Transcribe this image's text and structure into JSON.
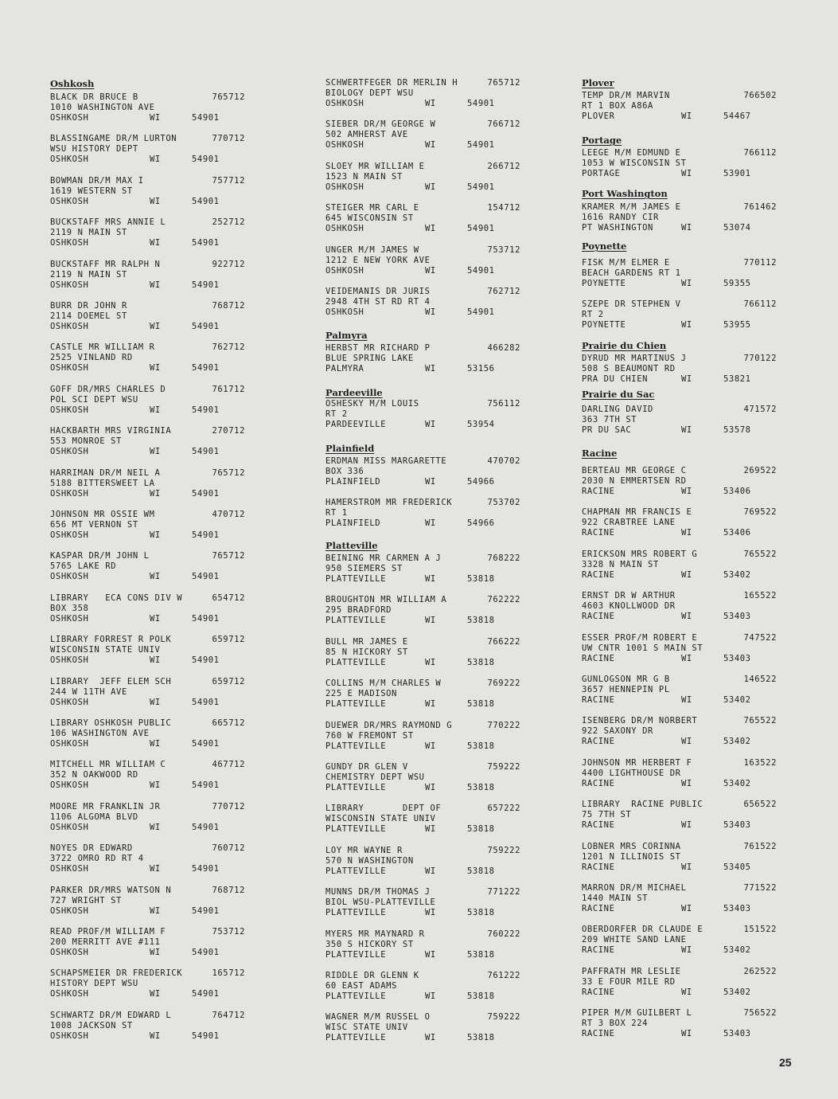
{
  "page_number": "25",
  "columns": [
    {
      "sections": [
        {
          "heading": "Oshkosh",
          "entries": [
            {
              "name": "BLACK DR BRUCE B",
              "code": "765712",
              "address": "1010 WASHINGTON AVE",
              "city": "OSHKOSH",
              "state": "WI",
              "zip": "54901"
            },
            {
              "name": "BLASSINGAME DR/M LURTON",
              "code": "770712",
              "address": "WSU HISTORY DEPT",
              "city": "OSHKOSH",
              "state": "WI",
              "zip": "54901"
            },
            {
              "name": "BOWMAN DR/M MAX I",
              "code": "757712",
              "address": "1619 WESTERN ST",
              "city": "OSHKOSH",
              "state": "WI",
              "zip": "54901"
            },
            {
              "name": "BUCKSTAFF MRS ANNIE L",
              "code": "252712",
              "address": "2119 N MAIN ST",
              "city": "OSHKOSH",
              "state": "WI",
              "zip": "54901"
            },
            {
              "name": "BUCKSTAFF MR RALPH N",
              "code": "922712",
              "address": "2119 N MAIN ST",
              "city": "OSHKOSH",
              "state": "WI",
              "zip": "54901"
            },
            {
              "name": "BURR DR JOHN R",
              "code": "768712",
              "address": "2114 DOEMEL ST",
              "city": "OSHKOSH",
              "state": "WI",
              "zip": "54901"
            },
            {
              "name": "CASTLE MR WILLIAM R",
              "code": "762712",
              "address": "2525 VINLAND RD",
              "city": "OSHKOSH",
              "state": "WI",
              "zip": "54901"
            },
            {
              "name": "GOFF DR/MRS CHARLES D",
              "code": "761712",
              "address": "POL SCI DEPT WSU",
              "city": "OSHKOSH",
              "state": "WI",
              "zip": "54901"
            },
            {
              "name": "HACKBARTH MRS VIRGINIA",
              "code": "270712",
              "address": "553 MONROE ST",
              "city": "OSHKOSH",
              "state": "WI",
              "zip": "54901"
            },
            {
              "name": "HARRIMAN DR/M NEIL A",
              "code": "765712",
              "address": "5188 BITTERSWEET LA",
              "city": "OSHKOSH",
              "state": "WI",
              "zip": "54901"
            },
            {
              "name": "JOHNSON MR OSSIE WM",
              "code": "470712",
              "address": "656 MT VERNON ST",
              "city": "OSHKOSH",
              "state": "WI",
              "zip": "54901"
            },
            {
              "name": "KASPAR DR/M JOHN L",
              "code": "765712",
              "address": "5765 LAKE RD",
              "city": "OSHKOSH",
              "state": "WI",
              "zip": "54901"
            },
            {
              "name": "LIBRARY   ECA CONS DIV W",
              "code": "654712",
              "address": "BOX 358",
              "city": "OSHKOSH",
              "state": "WI",
              "zip": "54901"
            },
            {
              "name": "LIBRARY FORREST R POLK",
              "code": "659712",
              "address": "WISCONSIN STATE UNIV",
              "city": "OSHKOSH",
              "state": "WI",
              "zip": "54901"
            },
            {
              "name": "LIBRARY  JEFF ELEM SCH",
              "code": "659712",
              "address": "244 W 11TH AVE",
              "city": "OSHKOSH",
              "state": "WI",
              "zip": "54901"
            },
            {
              "name": "LIBRARY OSHKOSH PUBLIC",
              "code": "665712",
              "address": "106 WASHINGTON AVE",
              "city": "OSHKOSH",
              "state": "WI",
              "zip": "54901"
            },
            {
              "name": "MITCHELL MR WILLIAM C",
              "code": "467712",
              "address": "352 N OAKWOOD RD",
              "city": "OSHKOSH",
              "state": "WI",
              "zip": "54901"
            },
            {
              "name": "MOORE MR FRANKLIN JR",
              "code": "770712",
              "address": "1106 ALGOMA BLVD",
              "city": "OSHKOSH",
              "state": "WI",
              "zip": "54901"
            },
            {
              "name": "NOYES DR EDWARD",
              "code": "760712",
              "address": "3722 OMRO RD RT 4",
              "city": "OSHKOSH",
              "state": "WI",
              "zip": "54901"
            },
            {
              "name": "PARKER DR/MRS WATSON N",
              "code": "768712",
              "address": "727 WRIGHT ST",
              "city": "OSHKOSH",
              "state": "WI",
              "zip": "54901"
            },
            {
              "name": "READ PROF/M WILLIAM F",
              "code": "753712",
              "address": "200 MERRITT AVE #111",
              "city": "OSHKOSH",
              "state": "WI",
              "zip": "54901"
            },
            {
              "name": "SCHAPSMEIER DR FREDERICK",
              "code": "165712",
              "address": "HISTORY DEPT WSU",
              "city": "OSHKOSH",
              "state": "WI",
              "zip": "54901"
            },
            {
              "name": "SCHWARTZ DR/M EDWARD L",
              "code": "764712",
              "address": "1008 JACKSON ST",
              "city": "OSHKOSH",
              "state": "WI",
              "zip": "54901"
            }
          ]
        }
      ]
    },
    {
      "sections": [
        {
          "heading": "",
          "entries": [
            {
              "name": "SCHWERTFEGER DR MERLIN H",
              "code": "765712",
              "address": "BIOLOGY DEPT WSU",
              "city": "OSHKOSH",
              "state": "WI",
              "zip": "54901"
            },
            {
              "name": "SIEBER DR/M GEORGE W",
              "code": "766712",
              "address": "502 AMHERST AVE",
              "city": "OSHKOSH",
              "state": "WI",
              "zip": "54901"
            },
            {
              "name": "SLOEY MR WILLIAM E",
              "code": "266712",
              "address": "1523 N MAIN ST",
              "city": "OSHKOSH",
              "state": "WI",
              "zip": "54901"
            },
            {
              "name": "STEIGER MR CARL E",
              "code": "154712",
              "address": "645 WISCONSIN ST",
              "city": "OSHKOSH",
              "state": "WI",
              "zip": "54901"
            },
            {
              "name": "UNGER M/M JAMES W",
              "code": "753712",
              "address": "1212 E NEW YORK AVE",
              "city": "OSHKOSH",
              "state": "WI",
              "zip": "54901"
            },
            {
              "name": "VEIDEMANIS DR JURIS",
              "code": "762712",
              "address": "2948 4TH ST RD RT 4",
              "city": "OSHKOSH",
              "state": "WI",
              "zip": "54901"
            }
          ]
        },
        {
          "heading": "Palmyra",
          "entries": [
            {
              "name": "HERBST MR RICHARD P",
              "code": "466282",
              "address": "BLUE SPRING LAKE",
              "city": "PALMYRA",
              "state": "WI",
              "zip": "53156"
            }
          ]
        },
        {
          "heading": "Pardeeville",
          "entries": [
            {
              "name": "OSHESKY M/M LOUIS",
              "code": "756112",
              "address": "RT 2",
              "city": "PARDEEVILLE",
              "state": "WI",
              "zip": "53954"
            }
          ]
        },
        {
          "heading": "Plainfield",
          "entries": [
            {
              "name": "ERDMAN MISS MARGARETTE",
              "code": "470702",
              "address": "BOX 336",
              "city": "PLAINFIELD",
              "state": "WI",
              "zip": "54966"
            },
            {
              "name": "HAMERSTROM MR FREDERICK",
              "code": "753702",
              "address": "RT 1",
              "city": "PLAINFIELD",
              "state": "WI",
              "zip": "54966"
            }
          ]
        },
        {
          "heading": "Platteville",
          "entries": [
            {
              "name": "BEINING MR CARMEN A J",
              "code": "768222",
              "address": "950 SIEMERS ST",
              "city": "PLATTEVILLE",
              "state": "WI",
              "zip": "53818"
            },
            {
              "name": "BROUGHTON MR WILLIAM A",
              "code": "762222",
              "address": "295 BRADFORD",
              "city": "PLATTEVILLE",
              "state": "WI",
              "zip": "53818"
            },
            {
              "name": "BULL MR JAMES E",
              "code": "766222",
              "address": "85 N HICKORY ST",
              "city": "PLATTEVILLE",
              "state": "WI",
              "zip": "53818"
            },
            {
              "name": "COLLINS M/M CHARLES W",
              "code": "769222",
              "address": "225 E MADISON",
              "city": "PLATTEVILLE",
              "state": "WI",
              "zip": "53818"
            },
            {
              "name": "DUEWER DR/MRS RAYMOND G",
              "code": "770222",
              "address": "760 W FREMONT ST",
              "city": "PLATTEVILLE",
              "state": "WI",
              "zip": "53818"
            },
            {
              "name": "GUNDY DR GLEN V",
              "code": "759222",
              "address": "CHEMISTRY DEPT WSU",
              "city": "PLATTEVILLE",
              "state": "WI",
              "zip": "53818"
            },
            {
              "name": "LIBRARY       DEPT OF",
              "code": "657222",
              "address": "WISCONSIN STATE UNIV",
              "city": "PLATTEVILLE",
              "state": "WI",
              "zip": "53818"
            },
            {
              "name": "LOY MR WAYNE R",
              "code": "759222",
              "address": "570 N WASHINGTON",
              "city": "PLATTEVILLE",
              "state": "WI",
              "zip": "53818"
            },
            {
              "name": "MUNNS DR/M THOMAS J",
              "code": "771222",
              "address": "BIOL WSU-PLATTEVILLE",
              "city": "PLATTEVILLE",
              "state": "WI",
              "zip": "53818"
            },
            {
              "name": "MYERS MR MAYNARD R",
              "code": "760222",
              "address": "350 S HICKORY ST",
              "city": "PLATTEVILLE",
              "state": "WI",
              "zip": "53818"
            },
            {
              "name": "RIDDLE DR GLENN K",
              "code": "761222",
              "address": "60 EAST ADAMS",
              "city": "PLATTEVILLE",
              "state": "WI",
              "zip": "53818"
            },
            {
              "name": "WAGNER M/M RUSSEL O",
              "code": "759222",
              "address": "WISC STATE UNIV",
              "city": "PLATTEVILLE",
              "state": "WI",
              "zip": "53818"
            }
          ]
        }
      ]
    },
    {
      "sections": [
        {
          "heading": "Plover",
          "entries": [
            {
              "name": "TEMP DR/M MARVIN",
              "code": "766502",
              "address": "RT 1 BOX A86A",
              "city": "PLOVER",
              "state": "WI",
              "zip": "54467"
            }
          ]
        },
        {
          "heading": "Portage",
          "entries": [
            {
              "name": "LEEGE M/M EDMUND E",
              "code": "766112",
              "address": "1053 W WISCONSIN ST",
              "city": "PORTAGE",
              "state": "WI",
              "zip": "53901"
            }
          ]
        },
        {
          "heading": "Port Washington",
          "entries": [
            {
              "name": "KRAMER M/M JAMES E",
              "code": "761462",
              "address": "1616 RANDY CIR",
              "city": "PT WASHINGTON",
              "state": "WI",
              "zip": "53074"
            }
          ]
        },
        {
          "heading": "Poynette",
          "entries": [
            {
              "name": "FISK M/M ELMER E",
              "code": "770112",
              "address": "BEACH GARDENS RT 1",
              "city": "POYNETTE",
              "state": "WI",
              "zip": "59355"
            },
            {
              "name": "SZEPE DR STEPHEN V",
              "code": "766112",
              "address": "RT 2",
              "city": "POYNETTE",
              "state": "WI",
              "zip": "53955"
            }
          ]
        },
        {
          "heading": "Prairie du Chien",
          "entries": [
            {
              "name": "DYRUD MR MARTINUS J",
              "code": "770122",
              "address": "508 S BEAUMONT RD",
              "city": "PRA DU CHIEN",
              "state": "WI",
              "zip": "53821"
            }
          ]
        },
        {
          "heading": "Prairie du Sac",
          "entries": [
            {
              "name": "DARLING DAVID",
              "code": "471572",
              "address": "363 7TH ST",
              "city": "PR DU SAC",
              "state": "WI",
              "zip": "53578"
            }
          ]
        },
        {
          "heading": "Racine",
          "entries": [
            {
              "name": "BERTEAU MR GEORGE C",
              "code": "269522",
              "address": "2030 N EMMERTSEN RD",
              "city": "RACINE",
              "state": "WI",
              "zip": "53406"
            },
            {
              "name": "CHAPMAN MR FRANCIS E",
              "code": "769522",
              "address": "922 CRABTREE LANE",
              "city": "RACINE",
              "state": "WI",
              "zip": "53406"
            },
            {
              "name": "ERICKSON MRS ROBERT G",
              "code": "765522",
              "address": "3328 N MAIN ST",
              "city": "RACINE",
              "state": "WI",
              "zip": "53402"
            },
            {
              "name": "ERNST DR W ARTHUR",
              "code": "165522",
              "address": "4603 KNOLLWOOD DR",
              "city": "RACINE",
              "state": "WI",
              "zip": "53403"
            },
            {
              "name": "ESSER PROF/M ROBERT E",
              "code": "747522",
              "address": "UW CNTR 1001 S MAIN ST",
              "city": "RACINE",
              "state": "WI",
              "zip": "53403"
            },
            {
              "name": "GUNLOGSON MR G B",
              "code": "146522",
              "address": "3657 HENNEPIN PL",
              "city": "RACINE",
              "state": "WI",
              "zip": "53402"
            },
            {
              "name": "ISENBERG DR/M NORBERT",
              "code": "765522",
              "address": "922 SAXONY DR",
              "city": "RACINE",
              "state": "WI",
              "zip": "53402"
            },
            {
              "name": "JOHNSON MR HERBERT F",
              "code": "163522",
              "address": "4400 LIGHTHOUSE DR",
              "city": "RACINE",
              "state": "WI",
              "zip": "53402"
            },
            {
              "name": "LIBRARY  RACINE PUBLIC",
              "code": "656522",
              "address": "75 7TH ST",
              "city": "RACINE",
              "state": "WI",
              "zip": "53403"
            },
            {
              "name": "LOBNER MRS CORINNA",
              "code": "761522",
              "address": "1201 N ILLINOIS ST",
              "city": "RACINE",
              "state": "WI",
              "zip": "53405"
            },
            {
              "name": "MARRON DR/M MICHAEL",
              "code": "771522",
              "address": "1440 MAIN ST",
              "city": "RACINE",
              "state": "WI",
              "zip": "53403"
            },
            {
              "name": "OBERDORFER DR CLAUDE E",
              "code": "151522",
              "address": "209 WHITE SAND LANE",
              "city": "RACINE",
              "state": "WI",
              "zip": "53402"
            },
            {
              "name": "PAFFRATH MR LESLIE",
              "code": "262522",
              "address": "33 E FOUR MILE RD",
              "city": "RACINE",
              "state": "WI",
              "zip": "53402"
            },
            {
              "name": "PIPER M/M GUILBERT L",
              "code": "756522",
              "address": "RT 3 BOX 224",
              "city": "RACINE",
              "state": "WI",
              "zip": "53403"
            }
          ]
        }
      ]
    }
  ]
}
